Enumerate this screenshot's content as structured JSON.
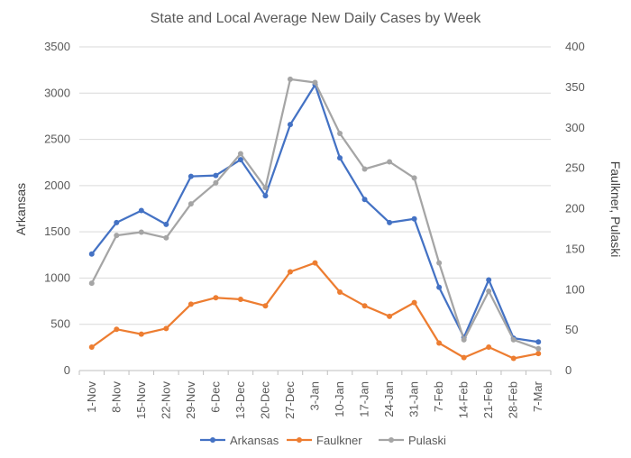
{
  "chart_data": {
    "type": "line",
    "title": "State and Local Average New Daily Cases by Week",
    "categories": [
      "1-Nov",
      "8-Nov",
      "15-Nov",
      "22-Nov",
      "29-Nov",
      "6-Dec",
      "13-Dec",
      "20-Dec",
      "27-Dec",
      "3-Jan",
      "10-Jan",
      "17-Jan",
      "24-Jan",
      "31-Jan",
      "7-Feb",
      "14-Feb",
      "21-Feb",
      "28-Feb",
      "7-Mar"
    ],
    "ylabel": "Arkansas",
    "y2label": "Faulkner, Pulaski",
    "ylim": [
      0,
      3500
    ],
    "y2lim": [
      0,
      400
    ],
    "yticks": [
      "0",
      "500",
      "1000",
      "1500",
      "2000",
      "2500",
      "3000",
      "3500"
    ],
    "y2ticks": [
      "0",
      "50",
      "100",
      "150",
      "200",
      "250",
      "300",
      "350",
      "400"
    ],
    "grid": true,
    "legend_position": "bottom",
    "series": [
      {
        "name": "Arkansas",
        "axis": "left",
        "color": "#4472C4",
        "values": [
          1260,
          1600,
          1730,
          1580,
          2100,
          2110,
          2280,
          1890,
          2660,
          3090,
          2300,
          1850,
          1600,
          1640,
          900,
          360,
          980,
          350,
          310
        ]
      },
      {
        "name": "Faulkner",
        "axis": "right",
        "color": "#ED7D31",
        "values": [
          29,
          51,
          45,
          52,
          82,
          90,
          88,
          80,
          122,
          133,
          97,
          80,
          67,
          84,
          34,
          16,
          29,
          15,
          21
        ]
      },
      {
        "name": "Pulaski",
        "axis": "right",
        "color": "#A5A5A5",
        "values": [
          108,
          167,
          171,
          164,
          206,
          232,
          268,
          226,
          360,
          356,
          293,
          249,
          258,
          238,
          133,
          38,
          98,
          38,
          27
        ]
      }
    ]
  }
}
